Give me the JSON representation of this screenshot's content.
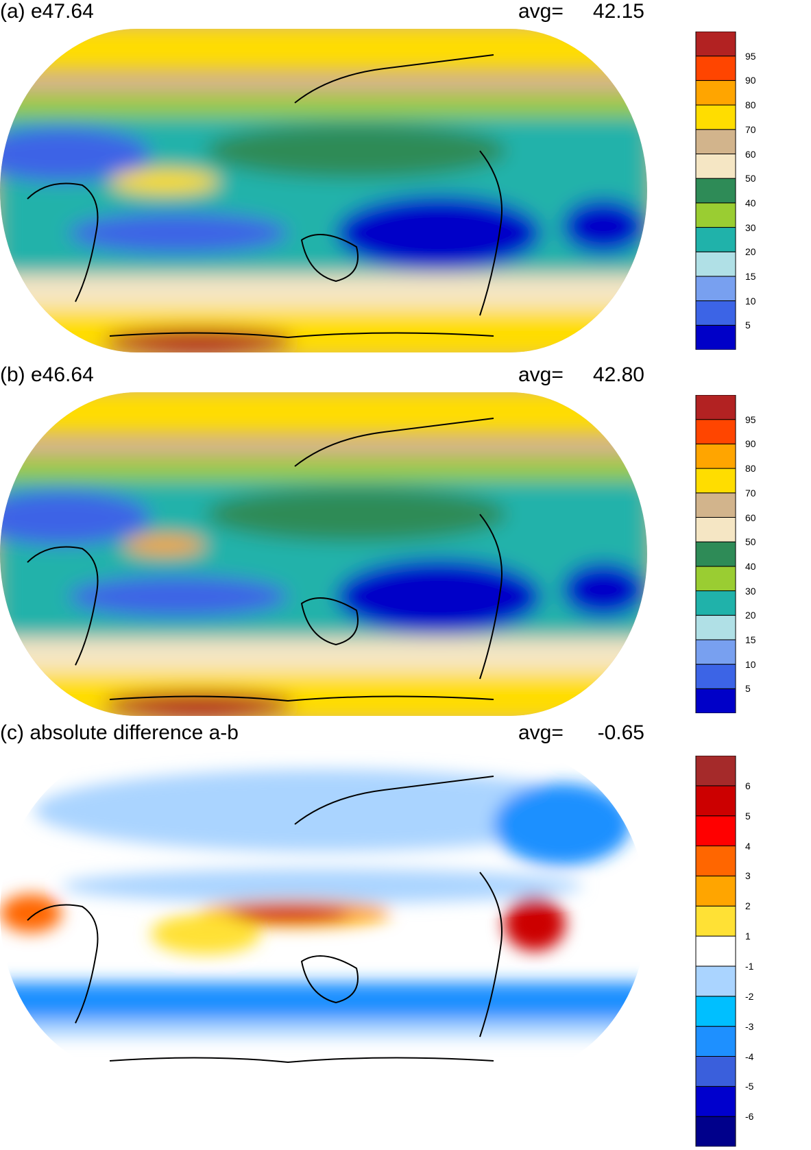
{
  "panels": [
    {
      "id": "a",
      "title": "(a) e47.64",
      "avg_label": "avg=",
      "avg_value": "42.15",
      "colorbar": {
        "colors": [
          "#0000c8",
          "#3c64e6",
          "#78a0f0",
          "#b0e0e6",
          "#20b2aa",
          "#9acd32",
          "#2e8b57",
          "#f5e6c4",
          "#d2b48c",
          "#ffdd00",
          "#ffa500",
          "#ff4500",
          "#b22222"
        ],
        "labels": [
          "5",
          "10",
          "15",
          "20",
          "30",
          "40",
          "50",
          "60",
          "70",
          "80",
          "90",
          "95"
        ]
      }
    },
    {
      "id": "b",
      "title": "(b) e46.64",
      "avg_label": "avg=",
      "avg_value": "42.80",
      "colorbar": {
        "colors": [
          "#0000c8",
          "#3c64e6",
          "#78a0f0",
          "#b0e0e6",
          "#20b2aa",
          "#9acd32",
          "#2e8b57",
          "#f5e6c4",
          "#d2b48c",
          "#ffdd00",
          "#ffa500",
          "#ff4500",
          "#b22222"
        ],
        "labels": [
          "5",
          "10",
          "15",
          "20",
          "30",
          "40",
          "50",
          "60",
          "70",
          "80",
          "90",
          "95"
        ]
      }
    },
    {
      "id": "c",
      "title": "(c) absolute difference a-b",
      "avg_label": "avg=",
      "avg_value": "-0.65",
      "colorbar": {
        "colors": [
          "#00008b",
          "#0000cd",
          "#3a5fdc",
          "#1e90ff",
          "#00bfff",
          "#aad4ff",
          "#ffffff",
          "#ffe135",
          "#ffa500",
          "#ff6600",
          "#ff0000",
          "#cc0000",
          "#a52a2a"
        ],
        "labels": [
          "-6",
          "-5",
          "-4",
          "-3",
          "-2",
          "-1",
          "1",
          "2",
          "3",
          "4",
          "5",
          "6"
        ]
      }
    }
  ]
}
